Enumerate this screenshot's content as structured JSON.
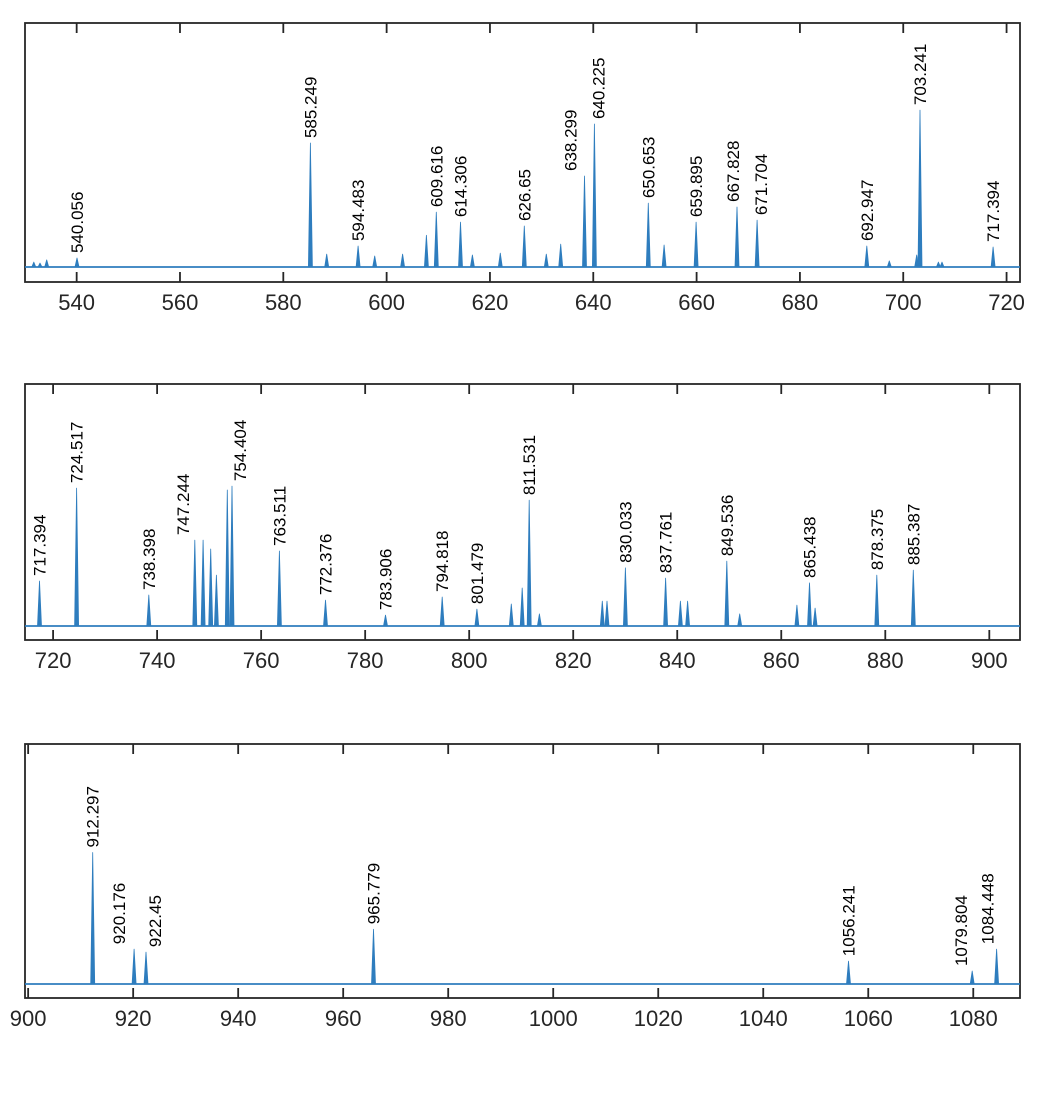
{
  "figure": {
    "kind": "mass-spectrum",
    "background": "#ffffff"
  },
  "chart_data": {
    "type": "line",
    "subtype": "mass_spectrum_stick",
    "title": "",
    "xlabel": "",
    "ylabel": "",
    "grid": false,
    "legend": false,
    "line_color": "#2e7dbe",
    "axis_color": "#262626",
    "tick_label_color": "#262626",
    "peak_label_color": "#000000",
    "panels": [
      {
        "xlim": [
          530,
          722.6
        ],
        "xticks": [
          540,
          560,
          580,
          600,
          620,
          640,
          660,
          680,
          700,
          720
        ],
        "peaks": [
          {
            "mz": 531.7,
            "i": 0.02
          },
          {
            "mz": 532.9,
            "i": 0.016
          },
          {
            "mz": 534.2,
            "i": 0.029
          },
          {
            "mz": 540.056,
            "i": 0.037,
            "label": "540.056"
          },
          {
            "mz": 585.249,
            "i": 0.508,
            "label": "585.249"
          },
          {
            "mz": 588.4,
            "i": 0.053
          },
          {
            "mz": 594.483,
            "i": 0.086,
            "label": "594.483"
          },
          {
            "mz": 597.7,
            "i": 0.045
          },
          {
            "mz": 603.1,
            "i": 0.053
          },
          {
            "mz": 607.7,
            "i": 0.13
          },
          {
            "mz": 609.616,
            "i": 0.225,
            "label": "609.616"
          },
          {
            "mz": 614.306,
            "i": 0.184,
            "label": "614.306"
          },
          {
            "mz": 616.6,
            "i": 0.049
          },
          {
            "mz": 622.0,
            "i": 0.057
          },
          {
            "mz": 626.65,
            "i": 0.168,
            "label": "626.65"
          },
          {
            "mz": 630.9,
            "i": 0.053
          },
          {
            "mz": 633.7,
            "i": 0.094
          },
          {
            "mz": 638.299,
            "i": 0.373,
            "label": "638.299",
            "dx": -14
          },
          {
            "mz": 640.225,
            "i": 0.586,
            "label": "640.225",
            "dx": 4
          },
          {
            "mz": 650.653,
            "i": 0.262,
            "label": "650.653"
          },
          {
            "mz": 653.7,
            "i": 0.09
          },
          {
            "mz": 659.895,
            "i": 0.184,
            "label": "659.895"
          },
          {
            "mz": 667.828,
            "i": 0.246,
            "label": "667.828",
            "dx": -4
          },
          {
            "mz": 671.704,
            "i": 0.192,
            "label": "671.704",
            "dx": 4
          },
          {
            "mz": 692.947,
            "i": 0.086,
            "label": "692.947"
          },
          {
            "mz": 697.3,
            "i": 0.025
          },
          {
            "mz": 702.6,
            "i": 0.049
          },
          {
            "mz": 703.241,
            "i": 0.643,
            "label": "703.241"
          },
          {
            "mz": 706.8,
            "i": 0.02
          },
          {
            "mz": 707.5,
            "i": 0.02
          },
          {
            "mz": 717.394,
            "i": 0.082,
            "label": "717.394"
          }
        ]
      },
      {
        "xlim": [
          714.6,
          905.9
        ],
        "xticks": [
          720,
          740,
          760,
          780,
          800,
          820,
          840,
          860,
          880,
          900
        ],
        "peaks": [
          {
            "mz": 717.394,
            "i": 0.186,
            "label": "717.394"
          },
          {
            "mz": 724.517,
            "i": 0.57,
            "label": "724.517"
          },
          {
            "mz": 738.398,
            "i": 0.128,
            "label": "738.398"
          },
          {
            "mz": 747.244,
            "i": 0.355,
            "label": "747.244",
            "dx": -12
          },
          {
            "mz": 748.85,
            "i": 0.355
          },
          {
            "mz": 750.3,
            "i": 0.318
          },
          {
            "mz": 751.4,
            "i": 0.21
          },
          {
            "mz": 753.5,
            "i": 0.562
          },
          {
            "mz": 754.404,
            "i": 0.578,
            "label": "754.404",
            "dx": 8
          },
          {
            "mz": 763.511,
            "i": 0.31,
            "label": "763.511"
          },
          {
            "mz": 772.376,
            "i": 0.107,
            "label": "772.376"
          },
          {
            "mz": 783.906,
            "i": 0.045,
            "label": "783.906"
          },
          {
            "mz": 794.818,
            "i": 0.12,
            "label": "794.818"
          },
          {
            "mz": 801.479,
            "i": 0.07,
            "label": "801.479"
          },
          {
            "mz": 808.1,
            "i": 0.091
          },
          {
            "mz": 810.2,
            "i": 0.157
          },
          {
            "mz": 811.531,
            "i": 0.52,
            "label": "811.531"
          },
          {
            "mz": 813.5,
            "i": 0.05
          },
          {
            "mz": 825.6,
            "i": 0.103
          },
          {
            "mz": 826.5,
            "i": 0.103
          },
          {
            "mz": 830.033,
            "i": 0.24,
            "label": "830.033"
          },
          {
            "mz": 837.761,
            "i": 0.198,
            "label": "837.761"
          },
          {
            "mz": 840.6,
            "i": 0.103
          },
          {
            "mz": 842.0,
            "i": 0.103
          },
          {
            "mz": 849.536,
            "i": 0.268,
            "label": "849.536"
          },
          {
            "mz": 852.0,
            "i": 0.05
          },
          {
            "mz": 863.0,
            "i": 0.086
          },
          {
            "mz": 865.438,
            "i": 0.178,
            "label": "865.438"
          },
          {
            "mz": 866.5,
            "i": 0.074
          },
          {
            "mz": 878.375,
            "i": 0.21,
            "label": "878.375"
          },
          {
            "mz": 885.387,
            "i": 0.231,
            "label": "885.387"
          }
        ]
      },
      {
        "xlim": [
          899.4,
          1088.9
        ],
        "xticks": [
          900,
          920,
          940,
          960,
          980,
          1000,
          1020,
          1040,
          1060,
          1080
        ],
        "peaks": [
          {
            "mz": 912.297,
            "i": 0.548,
            "label": "912.297"
          },
          {
            "mz": 920.176,
            "i": 0.145,
            "label": "920.176",
            "dx": -15
          },
          {
            "mz": 922.45,
            "i": 0.133,
            "label": "922.45",
            "dx": 9
          },
          {
            "mz": 965.779,
            "i": 0.228,
            "label": "965.779"
          },
          {
            "mz": 1056.241,
            "i": 0.095,
            "label": "1056.241"
          },
          {
            "mz": 1079.804,
            "i": 0.054,
            "label": "1079.804",
            "dx": -11
          },
          {
            "mz": 1084.448,
            "i": 0.145,
            "label": "1084.448",
            "dx": -9
          }
        ]
      }
    ]
  }
}
